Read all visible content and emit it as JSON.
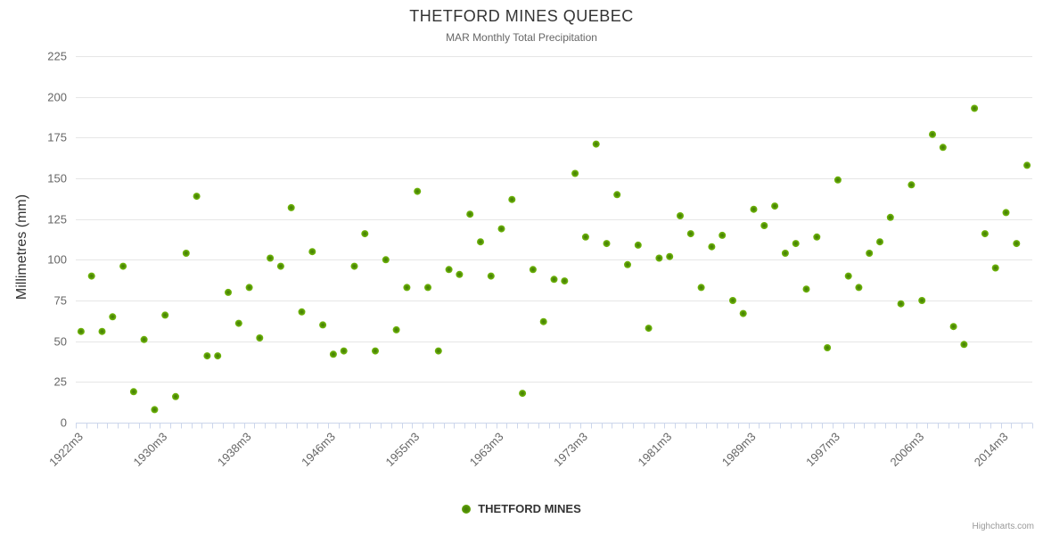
{
  "chart": {
    "title": "THETFORD MINES QUEBEC",
    "subtitle": "MAR Monthly Total Precipitation",
    "credit": "Highcharts.com",
    "legend": {
      "label": "THETFORD MINES",
      "marker_color_outer": "#6db309",
      "marker_color_inner": "#447d05"
    }
  },
  "chart_data": {
    "type": "scatter",
    "title": "THETFORD MINES QUEBEC",
    "subtitle": "MAR Monthly Total Precipitation",
    "xlabel": "",
    "ylabel": "Millimetres (mm)",
    "ylim": [
      0,
      225
    ],
    "ytick_interval": 25,
    "ytick_labels": [
      "0",
      "25",
      "50",
      "75",
      "100",
      "125",
      "150",
      "175",
      "200",
      "225"
    ],
    "grid": "horizontal",
    "legend_position": "bottom-center",
    "x_label_every": 8,
    "shown_x_labels": [
      "1922m3",
      "1930m3",
      "1938m3",
      "1946m3",
      "1955m3",
      "1963m3",
      "1973m3",
      "1981m3",
      "1989m3",
      "1997m3",
      "2006m3",
      "2014m3"
    ],
    "series": [
      {
        "name": "THETFORD MINES",
        "marker_outer": "#6db309",
        "marker_inner": "#447d05",
        "categories": [
          "1922m3",
          "1923m3",
          "1924m3",
          "1925m3",
          "1926m3",
          "1927m3",
          "1928m3",
          "1929m3",
          "1930m3",
          "1931m3",
          "1932m3",
          "1933m3",
          "1934m3",
          "1935m3",
          "1936m3",
          "1937m3",
          "1938m3",
          "1939m3",
          "1940m3",
          "1941m3",
          "1942m3",
          "1943m3",
          "1944m3",
          "1945m3",
          "1946m3",
          "1947m3",
          "1948m3",
          "1949m3",
          "1951m3",
          "1952m3",
          "1953m3",
          "1954m3",
          "1955m3",
          "1956m3",
          "1957m3",
          "1958m3",
          "1959m3",
          "1960m3",
          "1961m3",
          "1962m3",
          "1963m3",
          "1964m3",
          "1965m3",
          "1966m3",
          "1967m3",
          "1969m3",
          "1971m3",
          "1972m3",
          "1973m3",
          "1974m3",
          "1975m3",
          "1976m3",
          "1977m3",
          "1978m3",
          "1979m3",
          "1980m3",
          "1981m3",
          "1982m3",
          "1983m3",
          "1984m3",
          "1985m3",
          "1986m3",
          "1987m3",
          "1988m3",
          "1989m3",
          "1990m3",
          "1991m3",
          "1992m3",
          "1993m3",
          "1994m3",
          "1995m3",
          "1996m3",
          "1997m3",
          "1998m3",
          "1999m3",
          "2000m3",
          "2001m3",
          "2002m3",
          "2004m3",
          "2005m3",
          "2006m3",
          "2007m3",
          "2008m3",
          "2009m3",
          "2010m3",
          "2011m3",
          "2012m3",
          "2013m3",
          "2014m3",
          "2015m3",
          "2016m3"
        ],
        "values": [
          56,
          90,
          56,
          65,
          96,
          19,
          51,
          8,
          66,
          16,
          104,
          139,
          41,
          41,
          80,
          61,
          83,
          52,
          101,
          96,
          132,
          68,
          105,
          60,
          42,
          44,
          96,
          116,
          44,
          100,
          57,
          83,
          142,
          83,
          44,
          94,
          91,
          128,
          111,
          90,
          119,
          137,
          18,
          94,
          62,
          88,
          87,
          153,
          114,
          171,
          110,
          140,
          97,
          109,
          58,
          101,
          102,
          127,
          116,
          83,
          108,
          115,
          75,
          67,
          131,
          121,
          133,
          104,
          110,
          82,
          114,
          46,
          149,
          90,
          83,
          104,
          111,
          126,
          73,
          146,
          75,
          177,
          169,
          59,
          48,
          193,
          116,
          95,
          129,
          110,
          158
        ]
      }
    ]
  }
}
